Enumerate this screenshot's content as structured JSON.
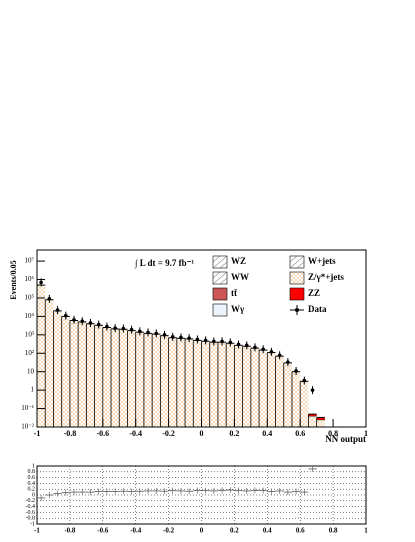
{
  "chart_data": {
    "type": "histogram",
    "ylabel": "Events/0.05",
    "xlabel": "NN output",
    "annotation": "∫ L dt = 9.7 fb⁻¹",
    "log_y": true,
    "bins": [
      -1,
      -0.95,
      -0.9,
      -0.85,
      -0.8,
      -0.75,
      -0.7,
      -0.65,
      -0.6,
      -0.55,
      -0.5,
      -0.45,
      -0.4,
      -0.35,
      -0.3,
      -0.25,
      -0.2,
      -0.15,
      -0.1,
      -0.05,
      0,
      0.05,
      0.1,
      0.15,
      0.2,
      0.25,
      0.3,
      0.35,
      0.4,
      0.45,
      0.5,
      0.55,
      0.6,
      0.65,
      0.7,
      0.75,
      0.8,
      0.85,
      0.9,
      0.95,
      1
    ],
    "xlim": [
      -1,
      1
    ],
    "xticks": [
      -1,
      -0.8,
      -0.6,
      -0.4,
      -0.2,
      0,
      0.2,
      0.4,
      0.6,
      0.8,
      1
    ],
    "ylim": [
      0.01,
      40000000
    ],
    "yticks": [
      {
        "value": 0.01,
        "label": "10⁻²"
      },
      {
        "value": 0.1,
        "label": "10⁻¹"
      },
      1,
      10,
      {
        "value": 100,
        "label": "10²"
      },
      {
        "value": 1000,
        "label": "10³"
      },
      {
        "value": 10000,
        "label": "10⁴"
      },
      {
        "value": 100000,
        "label": "10⁵"
      },
      {
        "value": 1000000,
        "label": "10⁶"
      },
      {
        "value": 10000000,
        "label": "10⁷"
      }
    ],
    "series": [
      {
        "name": "WZ",
        "color": "#ffffff",
        "values": [
          null,
          null,
          null,
          null,
          null,
          null,
          null,
          null,
          null,
          null,
          null,
          null,
          null,
          null,
          null,
          null,
          null,
          null,
          null,
          null,
          null,
          null,
          null,
          null,
          null,
          null,
          null,
          null,
          null,
          null,
          null,
          null,
          null,
          null,
          null,
          null,
          null,
          null,
          null,
          null
        ]
      },
      {
        "name": "WW",
        "color": "#ffffff",
        "values": [
          null,
          null,
          null,
          null,
          null,
          null,
          null,
          null,
          null,
          null,
          null,
          null,
          null,
          null,
          null,
          null,
          null,
          null,
          null,
          null,
          null,
          null,
          null,
          null,
          null,
          null,
          null,
          null,
          null,
          null,
          null,
          null,
          null,
          null,
          null,
          null,
          null,
          null,
          null,
          null
        ]
      },
      {
        "name": "tt̄",
        "color": "#cc5555",
        "values": [
          null,
          null,
          null,
          null,
          null,
          null,
          null,
          null,
          null,
          null,
          null,
          null,
          null,
          null,
          null,
          null,
          null,
          null,
          null,
          null,
          null,
          null,
          null,
          null,
          null,
          null,
          null,
          null,
          null,
          null,
          null,
          null,
          null,
          null,
          null,
          null,
          null,
          null,
          null,
          null
        ]
      },
      {
        "name": "Wγ",
        "color": "#eef2fb",
        "values": [
          null,
          null,
          null,
          null,
          null,
          null,
          null,
          null,
          null,
          null,
          null,
          null,
          null,
          null,
          null,
          null,
          null,
          null,
          null,
          null,
          null,
          null,
          null,
          null,
          null,
          null,
          null,
          null,
          null,
          null,
          null,
          null,
          null,
          null,
          null,
          null,
          null,
          null,
          null,
          null
        ]
      },
      {
        "name": "W+jets",
        "color": "#ffffff",
        "values": [
          null,
          null,
          null,
          null,
          null,
          null,
          null,
          null,
          null,
          null,
          null,
          null,
          null,
          null,
          null,
          null,
          null,
          null,
          null,
          null,
          null,
          null,
          null,
          null,
          null,
          null,
          null,
          null,
          null,
          null,
          null,
          null,
          null,
          null,
          null,
          null,
          null,
          null,
          null,
          null
        ]
      },
      {
        "name": "Z/γ*+jets",
        "color": "#f5e8d8",
        "values": [
          500000,
          80000,
          20000,
          10000,
          6000,
          5000,
          4000,
          3300,
          2500,
          2100,
          2000,
          1700,
          1400,
          1200,
          1100,
          900,
          700,
          650,
          600,
          500,
          450,
          400,
          400,
          350,
          270,
          240,
          190,
          150,
          110,
          70,
          30,
          10,
          3,
          0.03,
          0.015,
          null,
          null,
          null,
          null,
          null
        ]
      },
      {
        "name": "ZZ",
        "color": "#ff0000",
        "values": [
          null,
          null,
          null,
          null,
          null,
          null,
          null,
          null,
          null,
          null,
          null,
          null,
          null,
          null,
          null,
          null,
          null,
          null,
          null,
          null,
          null,
          null,
          null,
          null,
          null,
          null,
          null,
          null,
          null,
          null,
          null,
          null,
          null,
          0.01,
          0.008,
          null,
          null,
          null,
          null,
          null
        ]
      },
      {
        "name": "Data",
        "color": "#000000",
        "values": [
          700000,
          90000,
          22000,
          11000,
          6500,
          5500,
          4400,
          3600,
          2800,
          2300,
          2200,
          1900,
          1550,
          1350,
          1200,
          1000,
          780,
          720,
          660,
          560,
          500,
          440,
          440,
          390,
          300,
          270,
          210,
          165,
          120,
          78,
          33,
          11,
          3.3,
          1,
          null,
          null,
          null,
          null,
          null,
          null
        ]
      }
    ],
    "ratio": {
      "ylim": [
        -1,
        1
      ],
      "yticks": [
        -1,
        -0.8,
        -0.6,
        -0.4,
        -0.2,
        0,
        0.2,
        0.4,
        0.6,
        0.8,
        1
      ],
      "values": [
        -0.1,
        0,
        0.05,
        0.08,
        0.1,
        0.1,
        0.1,
        0.12,
        0.12,
        0.12,
        0.13,
        0.12,
        0.13,
        0.14,
        0.14,
        0.13,
        0.15,
        0.14,
        0.13,
        0.15,
        0.15,
        0.14,
        0.16,
        0.17,
        0.15,
        0.14,
        0.16,
        0.15,
        0.12,
        0.14,
        0.1,
        0.12,
        0.1,
        0.9,
        null,
        null,
        null,
        null,
        null,
        null
      ]
    }
  }
}
